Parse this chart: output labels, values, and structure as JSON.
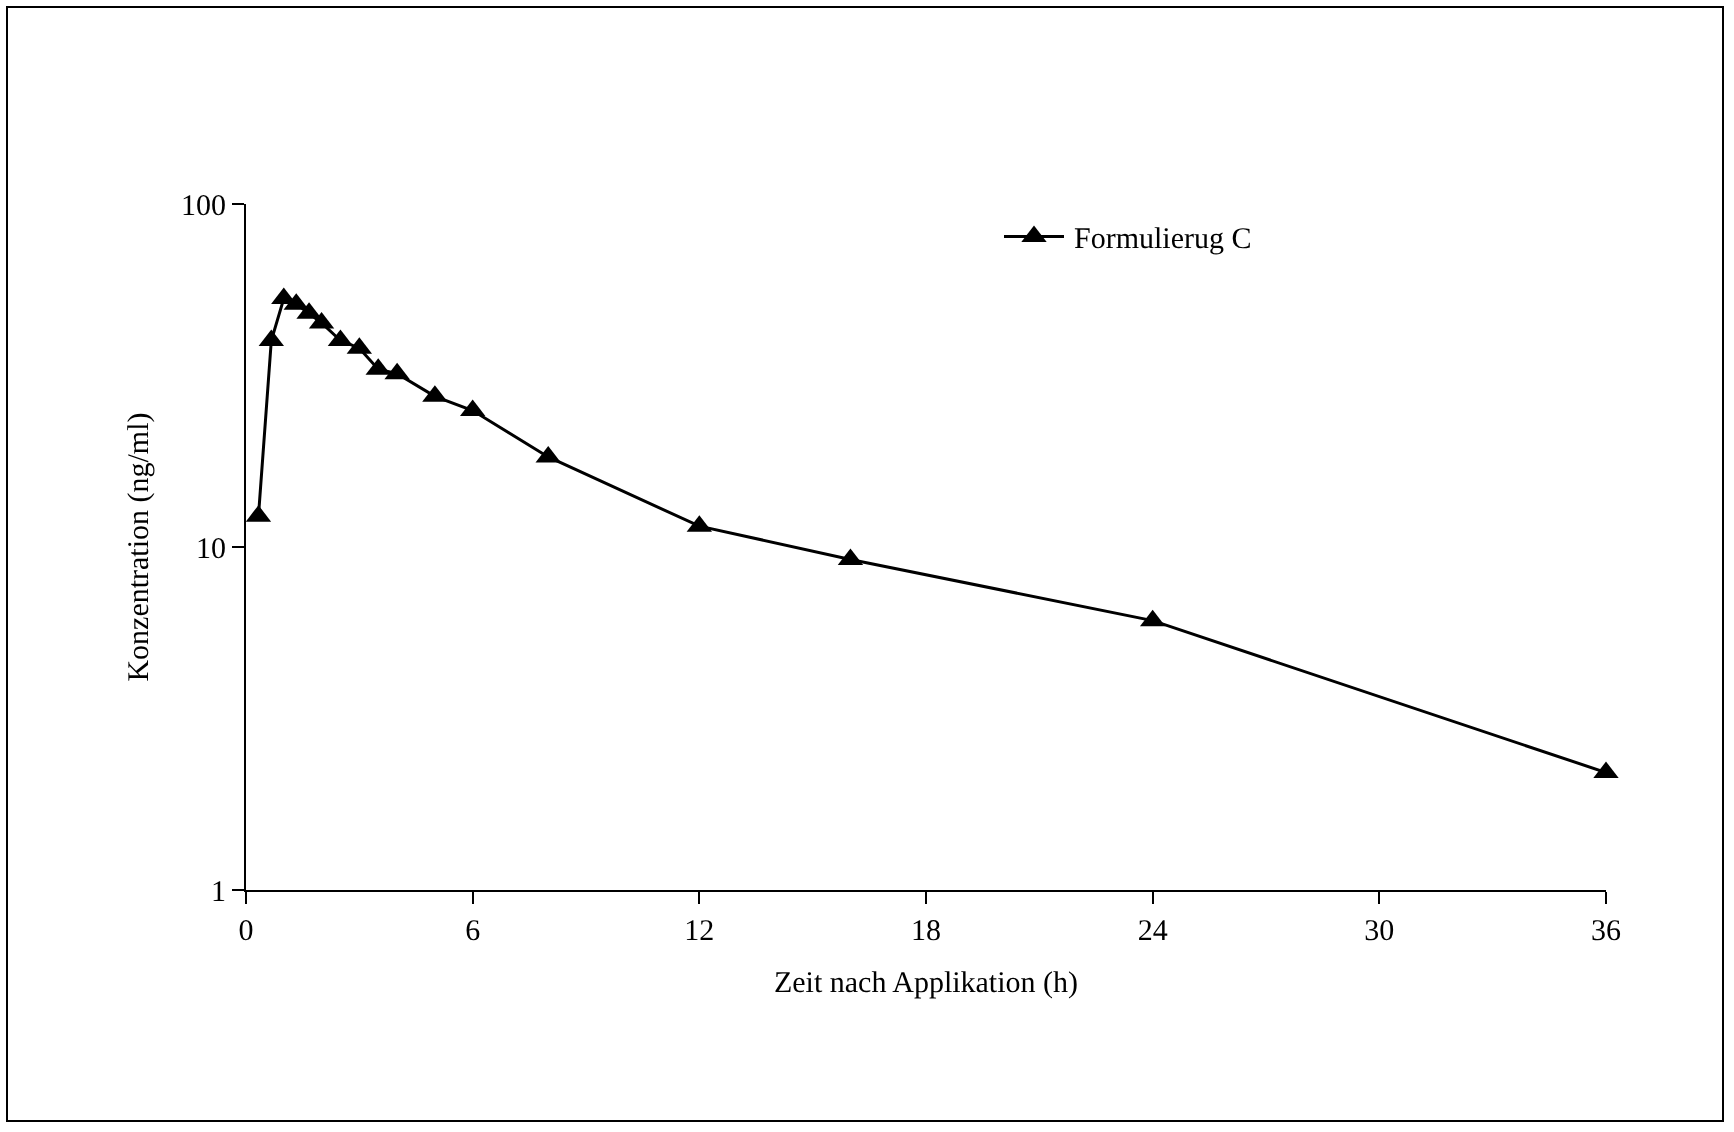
{
  "chart_data": {
    "type": "line",
    "xlabel": "Zeit nach Applikation (h)",
    "ylabel": "Konzentration (ng/ml)",
    "x": [
      0.33,
      0.67,
      1,
      1.33,
      1.67,
      2,
      2.5,
      3,
      3.5,
      4,
      5,
      6,
      8,
      12,
      16,
      24,
      36
    ],
    "series": [
      {
        "name": "Formulierug C",
        "color": "#000000",
        "values": [
          12.3,
          40,
          53,
          51,
          48,
          45,
          40,
          38,
          33,
          32,
          27.5,
          25,
          18.3,
          11.5,
          9.2,
          6.1,
          2.2
        ]
      }
    ],
    "xlim": [
      0,
      36
    ],
    "xticks": [
      0,
      6,
      12,
      18,
      24,
      30,
      36
    ],
    "ylim": [
      1,
      100
    ],
    "yticks": [
      1,
      10,
      100
    ],
    "log": "y",
    "grid": false,
    "legend": "top right",
    "marker": "triangle",
    "line_style": "solid"
  }
}
